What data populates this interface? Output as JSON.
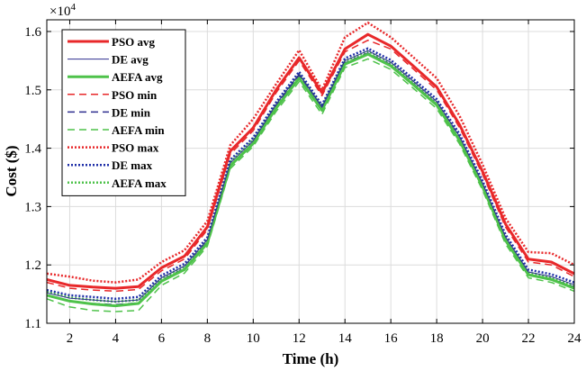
{
  "chart_data": {
    "type": "line",
    "xlabel": "Time (h)",
    "ylabel": "Cost ($)",
    "y_exponent_base": "×10",
    "y_exponent_power": "4",
    "xlim": [
      1,
      24
    ],
    "ylim": [
      1.1,
      1.62
    ],
    "xticks": [
      2,
      4,
      6,
      8,
      10,
      12,
      14,
      16,
      18,
      20,
      22,
      24
    ],
    "xtick_labels": [
      "2",
      "4",
      "6",
      "8",
      "10",
      "12",
      "14",
      "16",
      "18",
      "20",
      "22",
      "24"
    ],
    "yticks": [
      1.1,
      1.2,
      1.3,
      1.4,
      1.5,
      1.6
    ],
    "ytick_labels": [
      "1.1",
      "1.2",
      "1.3",
      "1.4",
      "1.5",
      "1.6"
    ],
    "grid": true,
    "legend_position": "top-left",
    "x": [
      1,
      2,
      3,
      4,
      5,
      6,
      7,
      8,
      9,
      10,
      11,
      12,
      13,
      14,
      15,
      16,
      17,
      18,
      19,
      20,
      21,
      22,
      23,
      24
    ],
    "series": [
      {
        "name": "PSO avg",
        "color": "#e8282a",
        "style": "solid-thick",
        "values": [
          1.175,
          1.165,
          1.162,
          1.16,
          1.163,
          1.195,
          1.215,
          1.265,
          1.395,
          1.435,
          1.5,
          1.555,
          1.495,
          1.57,
          1.595,
          1.575,
          1.54,
          1.505,
          1.44,
          1.36,
          1.27,
          1.21,
          1.205,
          1.185
        ]
      },
      {
        "name": "DE avg",
        "color": "#2f2f8f",
        "style": "solid-thin",
        "values": [
          1.152,
          1.143,
          1.14,
          1.137,
          1.14,
          1.178,
          1.198,
          1.243,
          1.375,
          1.413,
          1.475,
          1.527,
          1.47,
          1.55,
          1.567,
          1.547,
          1.514,
          1.48,
          1.42,
          1.34,
          1.248,
          1.188,
          1.18,
          1.166
        ]
      },
      {
        "name": "AEFA avg",
        "color": "#4ec24a",
        "style": "solid-thick",
        "values": [
          1.148,
          1.138,
          1.133,
          1.13,
          1.134,
          1.172,
          1.192,
          1.237,
          1.37,
          1.408,
          1.469,
          1.52,
          1.465,
          1.544,
          1.561,
          1.541,
          1.508,
          1.474,
          1.413,
          1.334,
          1.242,
          1.183,
          1.175,
          1.16
        ]
      },
      {
        "name": "PSO min",
        "color": "#e8282a",
        "style": "dashed",
        "values": [
          1.17,
          1.16,
          1.157,
          1.155,
          1.158,
          1.19,
          1.21,
          1.26,
          1.39,
          1.43,
          1.495,
          1.55,
          1.49,
          1.565,
          1.585,
          1.57,
          1.535,
          1.5,
          1.435,
          1.355,
          1.265,
          1.205,
          1.2,
          1.18
        ]
      },
      {
        "name": "DE min",
        "color": "#2f2f8f",
        "style": "dashed",
        "values": [
          1.148,
          1.138,
          1.134,
          1.132,
          1.135,
          1.174,
          1.194,
          1.24,
          1.37,
          1.41,
          1.472,
          1.524,
          1.466,
          1.546,
          1.563,
          1.543,
          1.51,
          1.476,
          1.416,
          1.336,
          1.244,
          1.184,
          1.176,
          1.162
        ]
      },
      {
        "name": "AEFA min",
        "color": "#4ec24a",
        "style": "dashed",
        "values": [
          1.142,
          1.128,
          1.122,
          1.12,
          1.122,
          1.165,
          1.186,
          1.232,
          1.365,
          1.403,
          1.463,
          1.514,
          1.458,
          1.538,
          1.553,
          1.535,
          1.502,
          1.468,
          1.407,
          1.328,
          1.236,
          1.178,
          1.17,
          1.155
        ]
      },
      {
        "name": "PSO max",
        "color": "#e8282a",
        "style": "dotted",
        "values": [
          1.185,
          1.18,
          1.173,
          1.17,
          1.175,
          1.205,
          1.225,
          1.275,
          1.405,
          1.45,
          1.51,
          1.568,
          1.5,
          1.59,
          1.615,
          1.59,
          1.555,
          1.52,
          1.455,
          1.372,
          1.28,
          1.222,
          1.22,
          1.2
        ]
      },
      {
        "name": "DE max",
        "color": "#1f2fa8",
        "style": "dotted",
        "values": [
          1.157,
          1.148,
          1.145,
          1.142,
          1.145,
          1.182,
          1.202,
          1.247,
          1.38,
          1.418,
          1.479,
          1.531,
          1.474,
          1.554,
          1.571,
          1.551,
          1.518,
          1.484,
          1.424,
          1.344,
          1.252,
          1.192,
          1.184,
          1.17
        ]
      },
      {
        "name": "AEFA max",
        "color": "#4ec24a",
        "style": "dotted",
        "values": [
          1.154,
          1.144,
          1.14,
          1.137,
          1.14,
          1.177,
          1.197,
          1.242,
          1.376,
          1.414,
          1.475,
          1.526,
          1.47,
          1.549,
          1.566,
          1.546,
          1.513,
          1.479,
          1.418,
          1.338,
          1.246,
          1.187,
          1.179,
          1.164
        ]
      }
    ]
  }
}
